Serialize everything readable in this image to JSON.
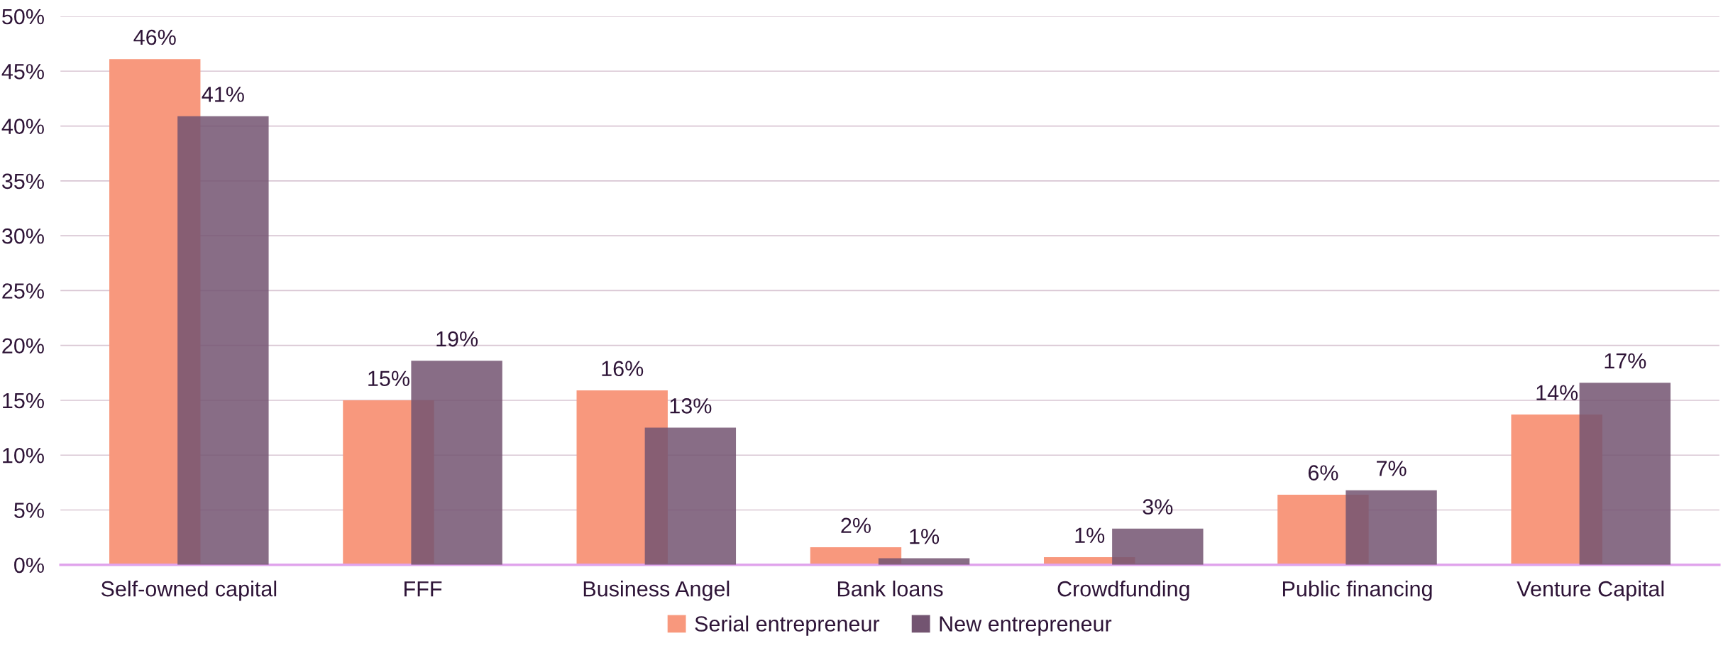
{
  "chart_data": {
    "type": "bar",
    "categories": [
      "Self-owned capital",
      "FFF",
      "Business Angel",
      "Bank loans",
      "Crowdfunding",
      "Public financing",
      "Venture Capital"
    ],
    "series": [
      {
        "name": "Serial entrepreneur",
        "color": "#f8987d",
        "values": [
          46.1,
          15.0,
          15.9,
          1.6,
          0.7,
          6.4,
          13.7
        ],
        "value_labels": [
          "46%",
          "15%",
          "16%",
          "2%",
          "1%",
          "6%",
          "14%"
        ]
      },
      {
        "name": "New entrepreneur",
        "color": "#735471",
        "values": [
          40.9,
          18.6,
          12.5,
          0.6,
          3.3,
          6.8,
          16.6
        ],
        "value_labels": [
          "41%",
          "19%",
          "13%",
          "1%",
          "3%",
          "7%",
          "17%"
        ]
      }
    ],
    "ylim": [
      0,
      50
    ],
    "yticks": [
      {
        "value": 0,
        "label": "0%"
      },
      {
        "value": 5,
        "label": "5%"
      },
      {
        "value": 10,
        "label": "10%"
      },
      {
        "value": 15,
        "label": "15%"
      },
      {
        "value": 20,
        "label": "20%"
      },
      {
        "value": 25,
        "label": "25%"
      },
      {
        "value": 30,
        "label": "30%"
      },
      {
        "value": 35,
        "label": "35%"
      },
      {
        "value": 40,
        "label": "40%"
      },
      {
        "value": 45,
        "label": "45%"
      },
      {
        "value": 50,
        "label": "50%"
      }
    ],
    "grid": "y",
    "legend": "bottom"
  }
}
